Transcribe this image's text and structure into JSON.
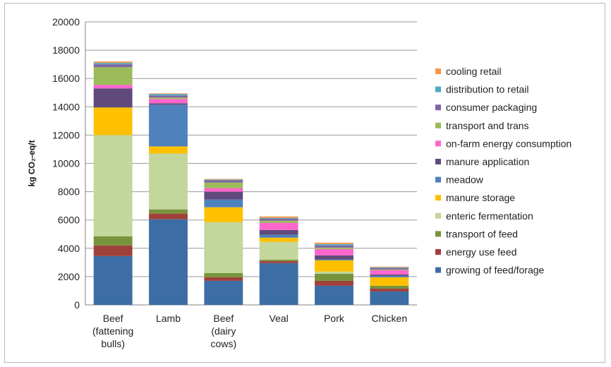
{
  "chart_data": {
    "type": "bar",
    "stacked": true,
    "categories": [
      [
        "Beef",
        "(fattening",
        "bulls)"
      ],
      [
        "Lamb"
      ],
      [
        "Beef",
        "(dairy",
        "cows)"
      ],
      [
        "Veal"
      ],
      [
        "Pork"
      ],
      [
        "Chicken"
      ]
    ],
    "ylabel": "kg CO₂-eq/t",
    "ylim": [
      0,
      20000
    ],
    "yticks": [
      0,
      2000,
      4000,
      6000,
      8000,
      10000,
      12000,
      14000,
      16000,
      18000,
      20000
    ],
    "grid": true,
    "legend_position": "right",
    "series": [
      {
        "name": "growing of feed/forage",
        "color": "#3c6ea5",
        "values": [
          3450,
          6050,
          1700,
          2950,
          1350,
          950
        ]
      },
      {
        "name": "energy use feed",
        "color": "#a0403c",
        "values": [
          750,
          400,
          250,
          150,
          350,
          200
        ]
      },
      {
        "name": "transport of feed",
        "color": "#77933c",
        "values": [
          650,
          300,
          300,
          100,
          500,
          200
        ]
      },
      {
        "name": "enteric fermentation",
        "color": "#c3d69b",
        "values": [
          7150,
          3950,
          3600,
          1250,
          150,
          0
        ]
      },
      {
        "name": "manure storage",
        "color": "#ffc000",
        "values": [
          1950,
          500,
          1050,
          300,
          800,
          600
        ]
      },
      {
        "name": "meadow",
        "color": "#4f81bd",
        "values": [
          0,
          2950,
          550,
          200,
          50,
          100
        ]
      },
      {
        "name": "manure application",
        "color": "#604a7b",
        "values": [
          1350,
          100,
          550,
          350,
          300,
          100
        ]
      },
      {
        "name": "on-farm energy consumption",
        "color": "#ff66cc",
        "values": [
          250,
          300,
          250,
          500,
          450,
          300
        ]
      },
      {
        "name": "transport and trans",
        "color": "#9bbb59",
        "values": [
          1250,
          100,
          400,
          150,
          100,
          50
        ]
      },
      {
        "name": "consumer packaging",
        "color": "#8064a2",
        "values": [
          200,
          150,
          150,
          150,
          150,
          100
        ]
      },
      {
        "name": "distribution to retail",
        "color": "#4bacc6",
        "values": [
          100,
          100,
          50,
          50,
          100,
          50
        ]
      },
      {
        "name": "cooling retail",
        "color": "#f79646",
        "values": [
          100,
          50,
          50,
          100,
          100,
          50
        ]
      }
    ]
  }
}
